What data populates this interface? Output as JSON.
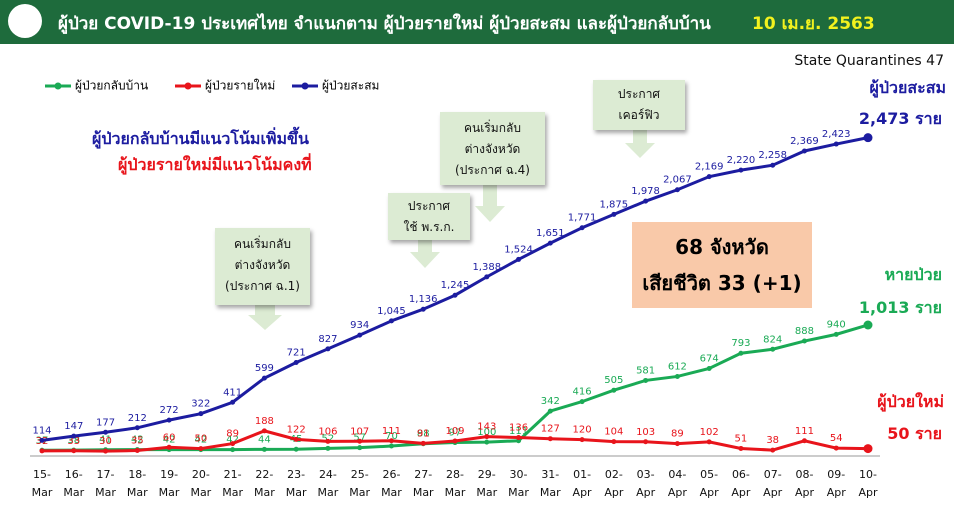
{
  "chart_data": {
    "type": "line",
    "title": "ผู้ป่วย COVID-19 ประเทศไทย จำแนกตาม ผู้ป่วยรายใหม่ ผู้ป่วยสะสม  และผู้ป่วยกลับบ้าน",
    "date": "10 เม.ย. 2563",
    "subtitle": "State Quarantines 47",
    "annotations": [
      "ผู้ป่วยกลับบ้านมีแนวโน้มเพิ่มขึ้น",
      "ผู้ป่วยรายใหม่มีแนวโน้มคงที่"
    ],
    "callouts": [
      "คนเริ่มกลับ\nต่างจังหวัด\n(ประกาศ ฉ.1)",
      "ประกาศ\nใช้ พ.ร.ก.",
      "คนเริ่มกลับ\nต่างจังหวัด\n(ประกาศ ฉ.4)",
      "ประกาศ\nเคอร์ฟิว"
    ],
    "summary": [
      "68 จังหวัด",
      "เสียชีวิต 33 (+1)"
    ],
    "categories": [
      "15-Mar",
      "16-Mar",
      "17-Mar",
      "18-Mar",
      "19-Mar",
      "20-Mar",
      "21-Mar",
      "22-Mar",
      "23-Mar",
      "24-Mar",
      "25-Mar",
      "26-Mar",
      "27-Mar",
      "28-Mar",
      "29-Mar",
      "30-Mar",
      "31-Mar",
      "01-Apr",
      "02-Apr",
      "03-Apr",
      "04-Apr",
      "05-Apr",
      "06-Apr",
      "07-Apr",
      "08-Apr",
      "09-Apr",
      "10-Apr"
    ],
    "ylim": [
      0,
      3000
    ],
    "series": [
      {
        "name": "ผู้ป่วยกลับบ้าน",
        "color": "#1aaa55",
        "end_title": "หายป่วย",
        "end_value": "1,013 ราย",
        "values": [
          37,
          38,
          41,
          42,
          42,
          42,
          42,
          44,
          45,
          52,
          57,
          70,
          88,
          97,
          100,
          111,
          342,
          416,
          505,
          581,
          612,
          674,
          793,
          824,
          888,
          940,
          1013
        ],
        "value_labels": [
          "37",
          "38",
          "41",
          "42",
          "42",
          "42",
          "42",
          "44",
          "45",
          "52",
          "57",
          "70",
          "88",
          "97",
          "100",
          "111",
          "342",
          "416",
          "505",
          "581",
          "612",
          "674",
          "793",
          "824",
          "888",
          "940",
          null
        ]
      },
      {
        "name": "ผู้ป่วยรายใหม่",
        "color": "#e8141b",
        "end_title": "ผู้ป่วยใหม่",
        "end_value": "50 ราย",
        "values": [
          32,
          33,
          30,
          35,
          60,
          50,
          89,
          188,
          122,
          106,
          107,
          111,
          91,
          109,
          143,
          136,
          127,
          120,
          104,
          103,
          89,
          102,
          51,
          38,
          111,
          54,
          50
        ],
        "value_labels": [
          "32",
          "33",
          "30",
          "35",
          "60",
          "50",
          "89",
          "188",
          "122",
          "106",
          "107",
          "111",
          "91",
          "109",
          "143",
          "136",
          "127",
          "120",
          "104",
          "103",
          "89",
          "102",
          "51",
          "38",
          "111",
          "54",
          null
        ]
      },
      {
        "name": "ผู้ป่วยสะสม",
        "color": "#1c1ca0",
        "end_title": "ผู้ป่วยสะสม",
        "end_value": "2,473 ราย",
        "values": [
          114,
          147,
          177,
          212,
          272,
          322,
          411,
          599,
          721,
          827,
          934,
          1045,
          1136,
          1245,
          1388,
          1524,
          1651,
          1771,
          1875,
          1978,
          2067,
          2169,
          2220,
          2258,
          2369,
          2423,
          2473
        ],
        "value_labels": [
          "114",
          "147",
          "177",
          "212",
          "272",
          "322",
          "411",
          "599",
          "721",
          "827",
          "934",
          "1,045",
          "1,136",
          "1,245",
          "1,388",
          "1,524",
          "1,651",
          "1,771",
          "1,875",
          "1,978",
          "2,067",
          "2,169",
          "2,220",
          "2,258",
          "2,369",
          "2,423",
          null
        ]
      }
    ]
  }
}
